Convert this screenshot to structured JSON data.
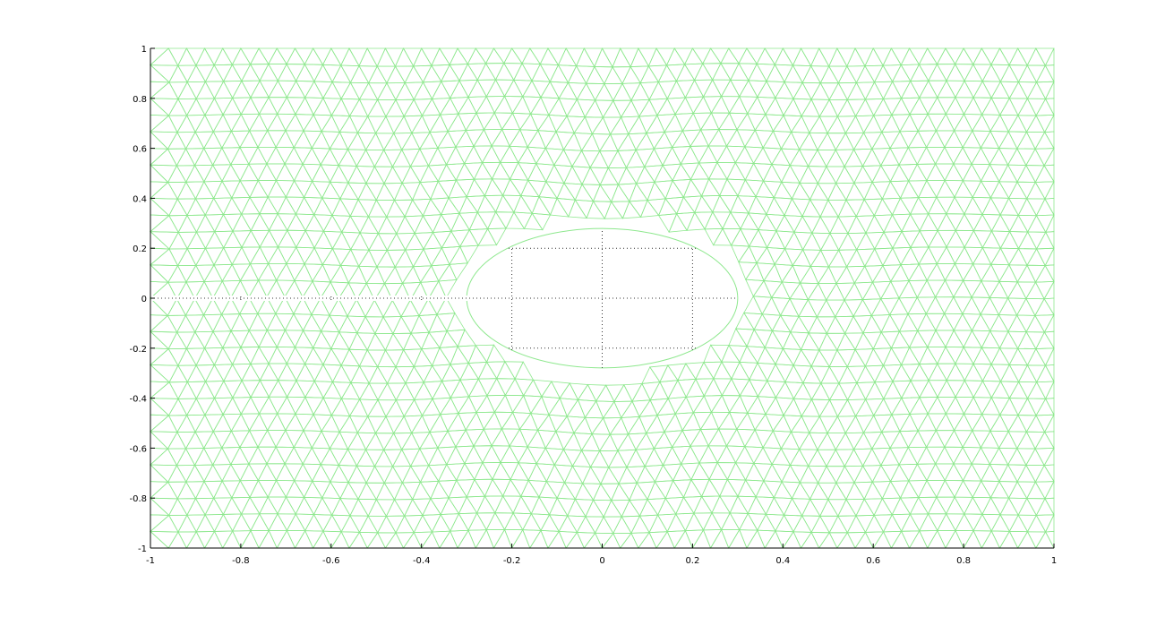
{
  "colors": {
    "mesh": "#8ee88e",
    "axis": "#000000",
    "grid": "#333333",
    "background": "#ffffff"
  },
  "chart_data": {
    "type": "mesh",
    "title": "",
    "xlabel": "",
    "ylabel": "",
    "xlim": [
      -1,
      1
    ],
    "ylim": [
      -1,
      1
    ],
    "x_ticks": [
      -1,
      -0.8,
      -0.6,
      -0.4,
      -0.2,
      0,
      0.2,
      0.4,
      0.6,
      0.8,
      1
    ],
    "x_tick_labels": [
      "-1",
      "-0.8",
      "-0.6",
      "-0.4",
      "-0.2",
      "0",
      "0.2",
      "0.4",
      "0.6",
      "0.8",
      "1"
    ],
    "y_ticks": [
      1,
      0.8,
      0.6,
      0.4,
      0.2,
      0,
      -0.2,
      -0.4,
      -0.6,
      -0.8,
      -1
    ],
    "y_tick_labels": [
      "1",
      "0.8",
      "0.6",
      "0.4",
      "0.2",
      "0",
      "-0.2",
      "-0.4",
      "-0.6",
      "-0.8",
      "-1"
    ],
    "grid": "dotted, inside hole region",
    "mesh_element": "triangle",
    "hole": {
      "shape": "ellipse",
      "center": [
        0,
        0
      ],
      "semi_axes": [
        0.3,
        0.3
      ]
    },
    "slit": {
      "y": 0,
      "x_range": [
        -1,
        -0.3
      ]
    }
  }
}
